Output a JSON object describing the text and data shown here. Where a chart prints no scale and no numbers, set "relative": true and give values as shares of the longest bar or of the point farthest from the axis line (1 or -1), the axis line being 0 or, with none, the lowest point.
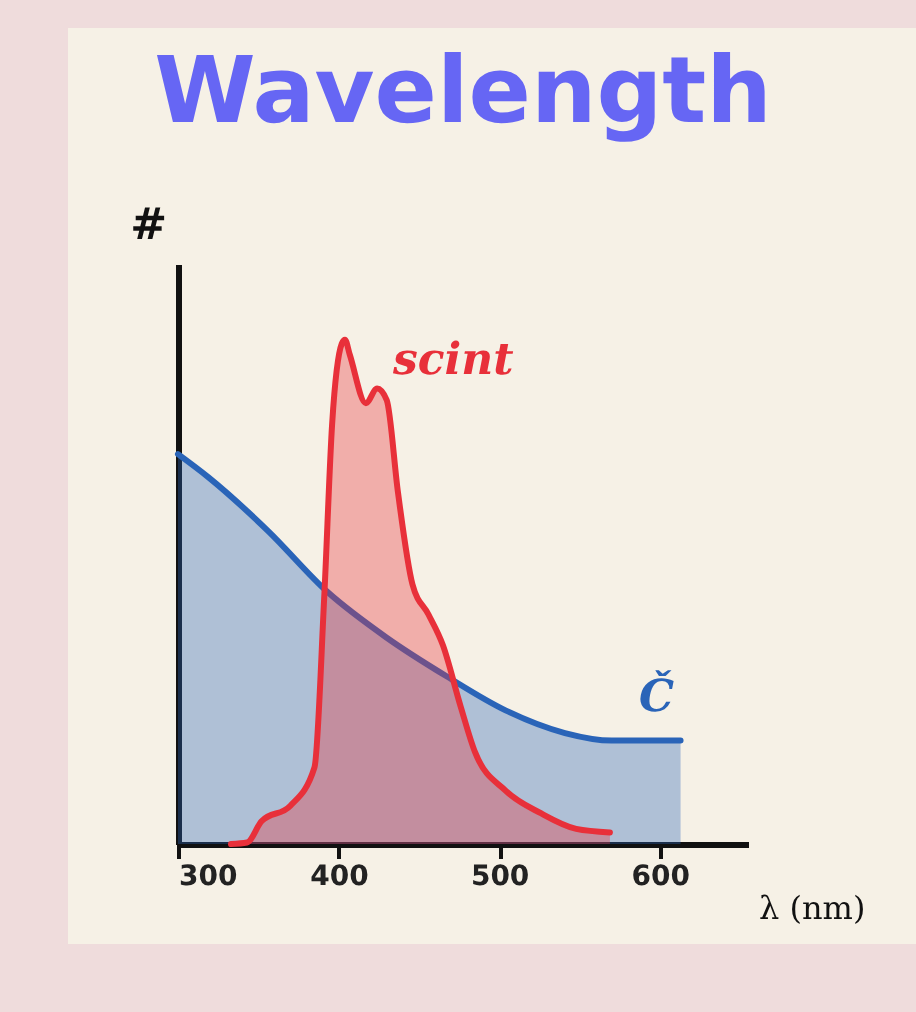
{
  "chart_data": {
    "type": "area",
    "title": "Wavelength",
    "xlabel": "λ (nm)",
    "ylabel": "#",
    "relative": true,
    "xlim": [
      300,
      655
    ],
    "xticks": [
      300,
      400,
      500,
      600
    ],
    "tick_labels": "x",
    "grid": false,
    "series": [
      {
        "name": "Č",
        "color": "#2a64b8",
        "x": [
          300,
          319,
          356,
          393,
          430,
          467,
          504,
          541,
          570,
          593,
          613
        ],
        "values": [
          0.773,
          0.727,
          0.621,
          0.5,
          0.409,
          0.333,
          0.265,
          0.22,
          0.205,
          0.205,
          0.205
        ]
      },
      {
        "name": "scint",
        "color": "#e8303a",
        "x": [
          333,
          343,
          352,
          370,
          385,
          391,
          396,
          402,
          404,
          407,
          417,
          424,
          430,
          437,
          446,
          456,
          465,
          476,
          485,
          504,
          526,
          548,
          569
        ],
        "values": [
          0,
          0.003,
          0.045,
          0.076,
          0.152,
          0.485,
          0.833,
          0.992,
          1.0,
          0.97,
          0.874,
          0.903,
          0.88,
          0.697,
          0.515,
          0.455,
          0.394,
          0.273,
          0.182,
          0.106,
          0.061,
          0.03,
          0.023
        ]
      }
    ]
  }
}
